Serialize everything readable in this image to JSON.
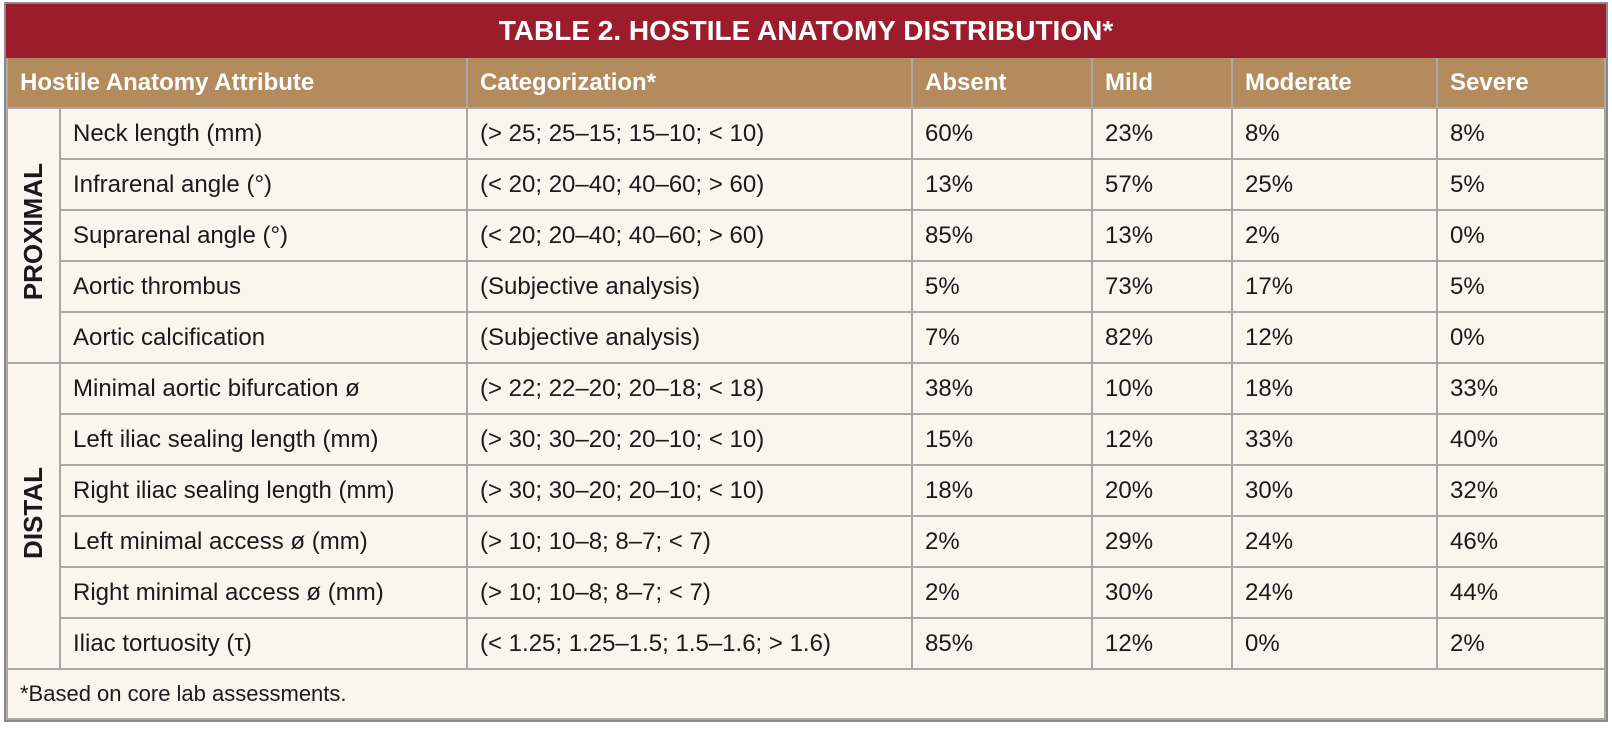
{
  "title": "TABLE 2.  HOSTILE ANATOMY DISTRIBUTION*",
  "columns": [
    "Hostile Anatomy Attribute",
    "Categorization*",
    "Absent",
    "Mild",
    "Moderate",
    "Severe"
  ],
  "groups": [
    {
      "label": "PROXIMAL",
      "rows": [
        [
          "Neck length (mm)",
          "(> 25; 25–15; 15–10; < 10)",
          "60%",
          "23%",
          "8%",
          "8%"
        ],
        [
          "Infrarenal angle (°)",
          "(< 20; 20–40; 40–60; > 60)",
          "13%",
          "57%",
          "25%",
          "5%"
        ],
        [
          "Suprarenal angle (°)",
          "(< 20; 20–40; 40–60; > 60)",
          "85%",
          "13%",
          "2%",
          "0%"
        ],
        [
          "Aortic thrombus",
          "(Subjective analysis)",
          "5%",
          "73%",
          "17%",
          "5%"
        ],
        [
          "Aortic calcification",
          "(Subjective analysis)",
          "7%",
          "82%",
          "12%",
          "0%"
        ]
      ]
    },
    {
      "label": "DISTAL",
      "rows": [
        [
          "Minimal aortic bifurcation ø",
          "(> 22; 22–20; 20–18; < 18)",
          "38%",
          "10%",
          "18%",
          "33%"
        ],
        [
          "Left iliac sealing length (mm)",
          "(> 30; 30–20; 20–10; < 10)",
          "15%",
          "12%",
          "33%",
          "40%"
        ],
        [
          "Right iliac sealing length (mm)",
          "(> 30; 30–20; 20–10; < 10)",
          "18%",
          "20%",
          "30%",
          "32%"
        ],
        [
          "Left minimal access ø (mm)",
          "(> 10; 10–8; 8–7; < 7)",
          "2%",
          "29%",
          "24%",
          "46%"
        ],
        [
          "Right minimal access ø (mm)",
          "(> 10; 10–8; 8–7; < 7)",
          "2%",
          "30%",
          "24%",
          "44%"
        ],
        [
          "Iliac tortuosity (τ)",
          "(< 1.25; 1.25–1.5; 1.5–1.6; > 1.6)",
          "85%",
          "12%",
          "0%",
          "2%"
        ]
      ]
    }
  ],
  "footnote": "*Based on core lab assessments."
}
